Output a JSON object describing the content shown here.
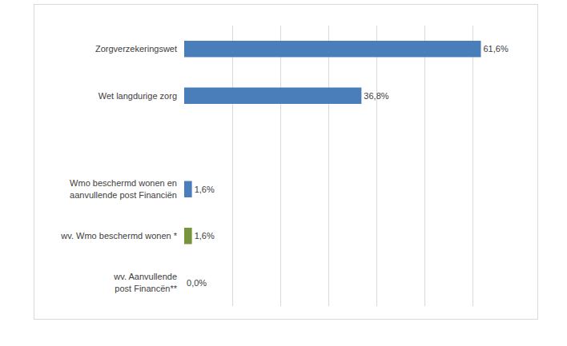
{
  "chart_data": {
    "type": "bar",
    "orientation": "horizontal",
    "categories": [
      "Zorgverzekeringswet",
      "Wet langdurige zorg",
      null,
      "Wmo beschermd wonen en aanvullende post Financiën",
      "wv. Wmo beschermd wonen *",
      "wv. Aanvullende post Financën**"
    ],
    "values": [
      61.6,
      36.8,
      null,
      1.6,
      1.6,
      0.0
    ],
    "value_labels": [
      "61,6%",
      "36,8%",
      null,
      "1,6%",
      "1,6%",
      "0,0%"
    ],
    "colors": [
      "#4a7ebb",
      "#4a7ebb",
      null,
      "#4a7ebb",
      "#77933c",
      "#4a7ebb"
    ],
    "xlim": [
      0,
      70
    ],
    "xticks": [
      0,
      10,
      20,
      30,
      40,
      50,
      60,
      70
    ],
    "grid": true,
    "data_labels": true,
    "tick_labels": "y"
  }
}
